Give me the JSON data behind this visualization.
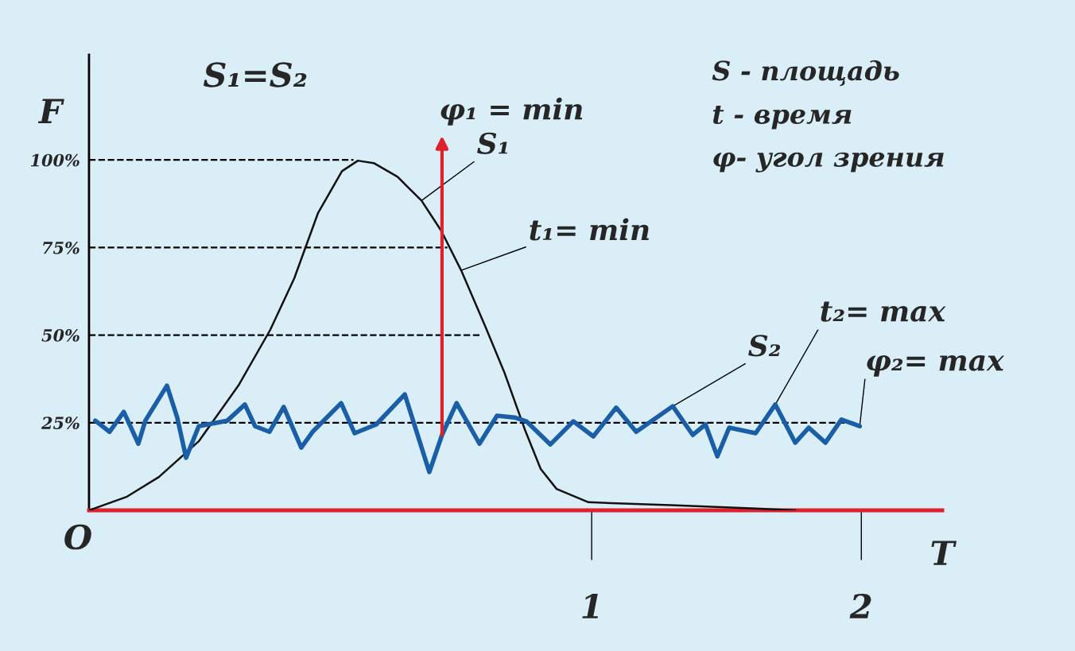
{
  "chart_data": {
    "type": "line",
    "xlabel": "T",
    "ylabel": "F",
    "xlim": [
      -0.864,
      2.3
    ],
    "ylim": [
      0,
      130
    ],
    "xticks": [
      1,
      2
    ],
    "yticks": [
      {
        "value": 25,
        "label": "25%"
      },
      {
        "value": 50,
        "label": "50%"
      },
      {
        "value": 75,
        "label": "75%"
      },
      {
        "value": 100,
        "label": "100%"
      }
    ],
    "grid": false,
    "line_style": "solid",
    "series": [
      {
        "color": "#111111",
        "x": [
          -0.864,
          -0.723,
          -0.605,
          -0.457,
          -0.31,
          -0.192,
          -0.103,
          -0.015,
          0.074,
          0.133,
          0.192,
          0.28,
          0.369,
          0.442,
          0.516,
          0.605,
          0.678,
          0.752,
          0.811,
          0.87,
          0.988,
          1.313,
          1.608,
          1.755
        ],
        "values": [
          0,
          3.9,
          9.5,
          19.7,
          35.6,
          51.5,
          66.2,
          84.8,
          96.8,
          99.8,
          99.1,
          95.2,
          88.4,
          79.8,
          68.5,
          52.6,
          39.0,
          23.1,
          11.8,
          6.1,
          2.3,
          1.4,
          0.5,
          0
        ]
      },
      {
        "color": "#1a5ea8",
        "x": [
          -0.841,
          -0.788,
          -0.735,
          -0.681,
          -0.655,
          -0.575,
          -0.537,
          -0.504,
          -0.457,
          -0.351,
          -0.286,
          -0.248,
          -0.195,
          -0.142,
          -0.077,
          -0.035,
          0.071,
          0.121,
          0.201,
          0.307,
          0.398,
          0.445,
          0.499,
          0.584,
          0.649,
          0.714,
          0.758,
          0.847,
          0.932,
          1.006,
          1.091,
          1.165,
          1.301,
          1.375,
          1.422,
          1.466,
          1.51,
          1.608,
          1.681,
          1.755,
          1.805,
          1.867,
          1.926,
          1.994
        ],
        "values": [
          25.6,
          22.4,
          28.1,
          19.0,
          25.6,
          35.6,
          26.5,
          15.0,
          24.0,
          25.6,
          30.2,
          24.0,
          22.4,
          29.5,
          17.9,
          22.4,
          30.6,
          22.0,
          24.5,
          33.1,
          10.9,
          21.5,
          30.6,
          19.0,
          27.0,
          26.5,
          25.4,
          18.8,
          25.4,
          21.1,
          29.3,
          22.4,
          29.7,
          21.5,
          24.5,
          15.4,
          23.6,
          22.0,
          30.2,
          19.3,
          23.6,
          19.3,
          25.9,
          24.0
        ]
      }
    ],
    "ref_lines": [
      {
        "axis": "y",
        "value": 100,
        "color": "#000000",
        "line_style": "dashed"
      },
      {
        "axis": "y",
        "value": 75,
        "color": "#000000",
        "line_style": "dashed"
      },
      {
        "axis": "y",
        "value": 50,
        "color": "#000000",
        "line_style": "dashed"
      },
      {
        "axis": "y",
        "value": 25,
        "color": "#000000",
        "line_style": "dashed"
      }
    ],
    "annotations": [
      "S₁=S₂",
      "S - площадь",
      "t - время",
      "φ- угол зрения",
      "O",
      {
        "text": "φ₁ = min",
        "x": 0.445,
        "y": 21.5
      },
      {
        "text": "S₁",
        "x": 0.369,
        "y": 88.4
      },
      {
        "text": "t₁= min",
        "x": 0.516,
        "y": 68.5
      },
      {
        "text": "φ₂= max",
        "x": 1.994,
        "y": 24.0
      },
      {
        "text": "S₂",
        "x": 1.301,
        "y": 29.7
      },
      {
        "text": "t₂= max",
        "x": 1.681,
        "y": 30.2
      }
    ]
  }
}
